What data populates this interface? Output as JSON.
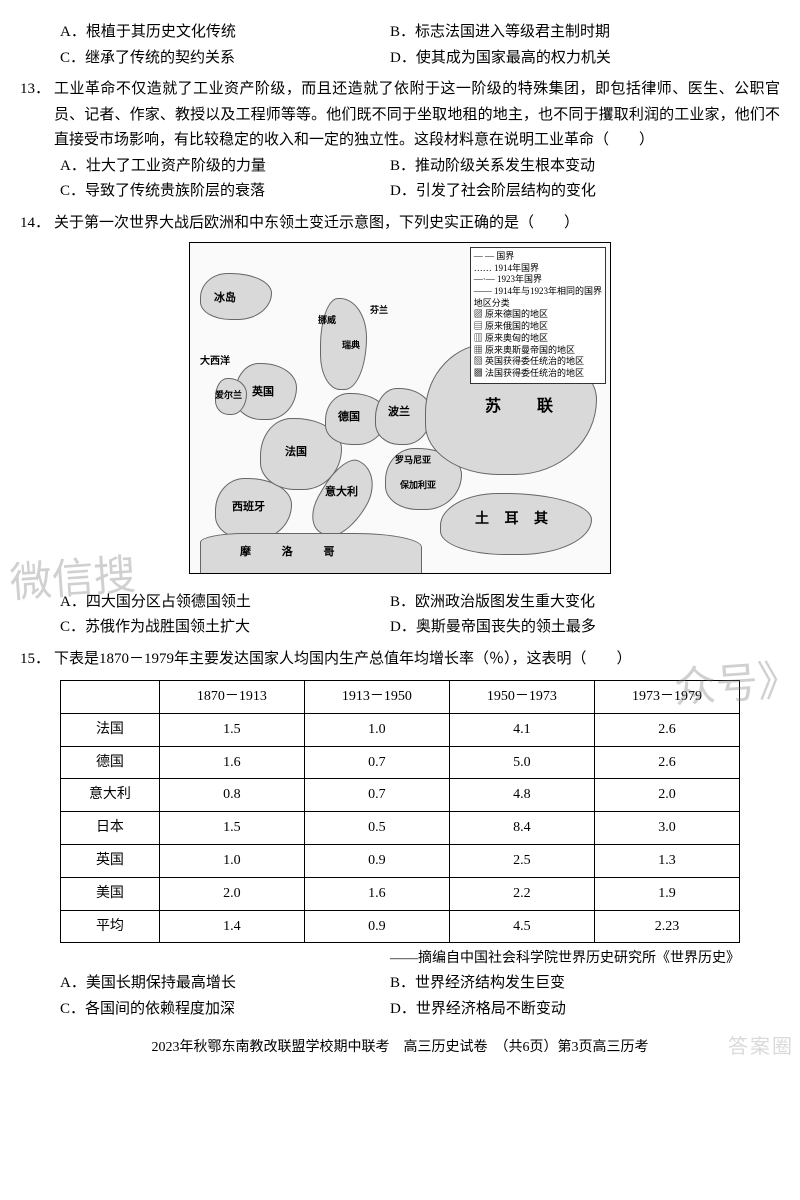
{
  "q12_options": {
    "A": "A．根植于其历史文化传统",
    "B": "B．标志法国进入等级君主制时期",
    "C": "C．继承了传统的契约关系",
    "D": "D．使其成为国家最高的权力机关"
  },
  "q13": {
    "num": "13．",
    "text": "工业革命不仅造就了工业资产阶级，而且还造就了依附于这一阶级的特殊集团，即包括律师、医生、公职官员、记者、作家、教授以及工程师等等。他们既不同于坐取地租的地主，也不同于攫取利润的工业家，他们不直接受市场影响，有比较稳定的收入和一定的独立性。这段材料意在说明工业革命（　　）",
    "options": {
      "A": "A．壮大了工业资产阶级的力量",
      "B": "B．推动阶级关系发生根本变动",
      "C": "C．导致了传统贵族阶层的衰落",
      "D": "D．引发了社会阶层结构的变化"
    }
  },
  "q14": {
    "num": "14．",
    "text": "关于第一次世界大战后欧洲和中东领土变迁示意图，下列史实正确的是（　　）",
    "legend": [
      "— — 国界",
      "…… 1914年国界",
      "—·— 1923年国界",
      "——  1914年与1923年相同的国界",
      "地区分类",
      "▨ 原来德国的地区",
      "▤ 原来俄国的地区",
      "▥ 原来奥匈的地区",
      "▦ 原来奥斯曼帝国的地区",
      "▧ 英国获得委任统治的地区",
      "▩ 法国获得委任统治的地区"
    ],
    "labels": {
      "russia": "苏　联",
      "turkey": "土 耳 其",
      "germany": "德国",
      "france": "法国",
      "uk": "英国",
      "spain": "西班牙",
      "italy": "意大利",
      "poland": "波兰",
      "north_africa": "摩   洛   哥",
      "bulgaria": "保加利亚",
      "romania": "罗马尼亚",
      "atlantic": "大西洋",
      "iceland": "冰岛",
      "ireland": "爱尔兰",
      "norway": "挪威",
      "sweden": "瑞典",
      "finland": "芬兰"
    },
    "options": {
      "A": "A．四大国分区占领德国领土",
      "B": "B．欧洲政治版图发生重大变化",
      "C": "C．苏俄作为战胜国领土扩大",
      "D": "D．奥斯曼帝国丧失的领土最多"
    }
  },
  "q15": {
    "num": "15．",
    "text": "下表是1870－1979年主要发达国家人均国内生产总值年均增长率（％），这表明（　　）",
    "table": {
      "headers": [
        "",
        "1870－1913",
        "1913－1950",
        "1950－1973",
        "1973－1979"
      ],
      "rows": [
        [
          "法国",
          "1.5",
          "1.0",
          "4.1",
          "2.6"
        ],
        [
          "德国",
          "1.6",
          "0.7",
          "5.0",
          "2.6"
        ],
        [
          "意大利",
          "0.8",
          "0.7",
          "4.8",
          "2.0"
        ],
        [
          "日本",
          "1.5",
          "0.5",
          "8.4",
          "3.0"
        ],
        [
          "英国",
          "1.0",
          "0.9",
          "2.5",
          "1.3"
        ],
        [
          "美国",
          "2.0",
          "1.6",
          "2.2",
          "1.9"
        ],
        [
          "平均",
          "1.4",
          "0.9",
          "4.5",
          "2.23"
        ]
      ],
      "col_widths": [
        "90px",
        "140px",
        "140px",
        "140px",
        "140px"
      ]
    },
    "source": "——摘编自中国社会科学院世界历史研究所《世界历史》",
    "options": {
      "A": "A．美国长期保持最高增长",
      "B": "B．世界经济结构发生巨变",
      "C": "C．各国间的依赖程度加深",
      "D": "D．世界经济格局不断变动"
    }
  },
  "footer": "2023年秋鄂东南教改联盟学校期中联考　高三历史试卷　（共6页）第3页高三历考",
  "watermarks": {
    "left": "微信搜",
    "right": "众号》"
  },
  "corner_wm": "答案圈",
  "colors": {
    "text": "#000000",
    "bg": "#ffffff",
    "map_fill": "#d9d9d9",
    "wm": "rgba(120,120,120,0.35)"
  }
}
